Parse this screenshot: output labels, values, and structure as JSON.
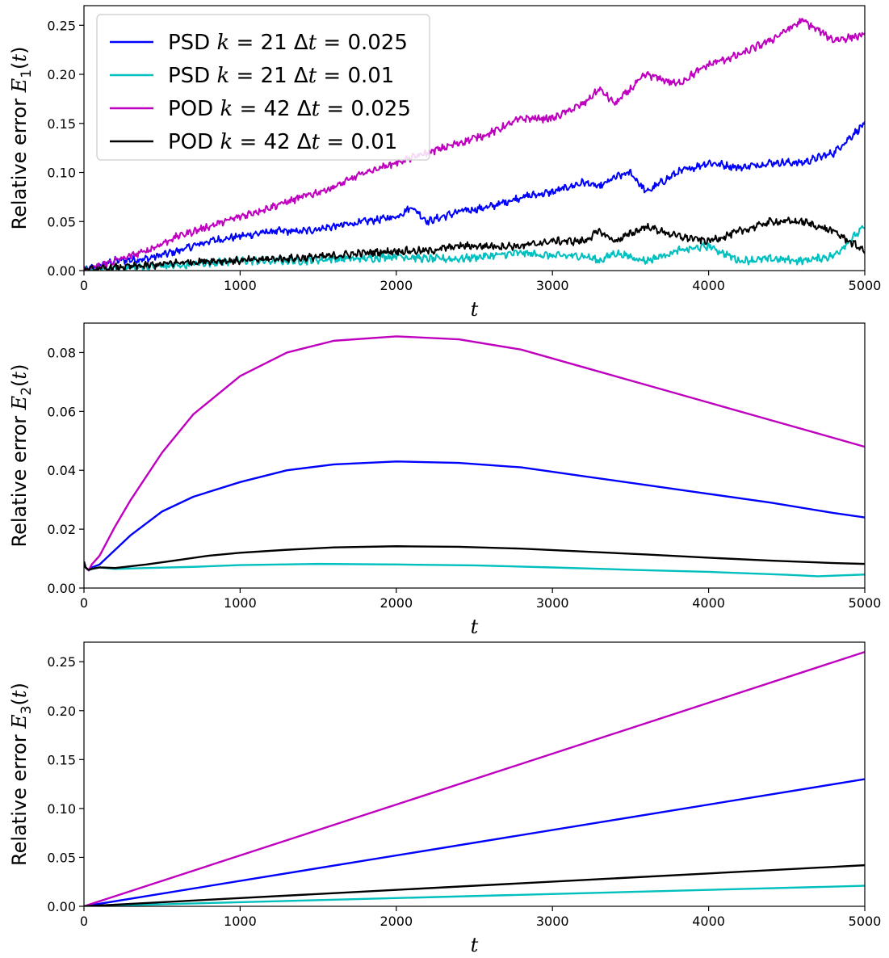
{
  "colors": {
    "psd_k21_dt0025": "#0000ff",
    "psd_k21_dt001": "#00bfbf",
    "pod_k42_dt0025": "#bf00bf",
    "pod_k42_dt001": "#000000",
    "axis": "#000000",
    "background": "#ffffff"
  },
  "legend": {
    "placement": "top-left",
    "panel": 0,
    "entries": [
      {
        "series": "psd_k21_dt0025",
        "method": "PSD",
        "k": "21",
        "dt": "0.025"
      },
      {
        "series": "psd_k21_dt001",
        "method": "PSD",
        "k": "21",
        "dt": "0.01"
      },
      {
        "series": "pod_k42_dt0025",
        "method": "POD",
        "k": "42",
        "dt": "0.025"
      },
      {
        "series": "pod_k42_dt001",
        "method": "POD",
        "k": "42",
        "dt": "0.01"
      }
    ]
  },
  "chart_data": [
    {
      "type": "line",
      "ylabel_prefix": "Relative error",
      "ylabel_sub": "1",
      "xlabel": "t",
      "xlim": [
        0,
        5000
      ],
      "ylim": [
        0,
        0.27
      ],
      "xticks": [
        0,
        1000,
        2000,
        3000,
        4000,
        5000
      ],
      "yticks": [
        0.0,
        0.05,
        0.1,
        0.15,
        0.2,
        0.25
      ],
      "ytick_decimals": 2,
      "grid": false,
      "noisy": true,
      "series": [
        {
          "key": "psd_k21_dt0025",
          "name": "PSD k = 21 Δt = 0.025",
          "x": [
            0,
            100,
            200,
            400,
            600,
            800,
            1000,
            1200,
            1400,
            1600,
            1800,
            2000,
            2100,
            2200,
            2400,
            2600,
            2800,
            3000,
            3200,
            3300,
            3400,
            3500,
            3600,
            3800,
            4000,
            4200,
            4400,
            4600,
            4800,
            5000
          ],
          "values": [
            0,
            0.005,
            0.01,
            0.012,
            0.02,
            0.03,
            0.035,
            0.04,
            0.04,
            0.045,
            0.05,
            0.055,
            0.065,
            0.05,
            0.06,
            0.065,
            0.075,
            0.08,
            0.09,
            0.085,
            0.095,
            0.1,
            0.08,
            0.1,
            0.11,
            0.105,
            0.11,
            0.11,
            0.12,
            0.15
          ]
        },
        {
          "key": "psd_k21_dt001",
          "name": "PSD k = 21 Δt = 0.01",
          "x": [
            0,
            200,
            400,
            600,
            800,
            1000,
            1200,
            1400,
            1600,
            1800,
            2000,
            2200,
            2400,
            2600,
            2800,
            3000,
            3200,
            3300,
            3400,
            3600,
            3800,
            4000,
            4200,
            4400,
            4600,
            4800,
            5000
          ],
          "values": [
            0,
            0.002,
            0.004,
            0.005,
            0.008,
            0.01,
            0.01,
            0.01,
            0.012,
            0.012,
            0.015,
            0.012,
            0.012,
            0.015,
            0.018,
            0.015,
            0.015,
            0.01,
            0.018,
            0.01,
            0.02,
            0.025,
            0.01,
            0.012,
            0.01,
            0.015,
            0.045
          ]
        },
        {
          "key": "pod_k42_dt0025",
          "name": "POD k = 42 Δt = 0.025",
          "x": [
            0,
            200,
            400,
            600,
            800,
            1000,
            1200,
            1400,
            1600,
            1800,
            2000,
            2200,
            2400,
            2600,
            2800,
            3000,
            3200,
            3300,
            3400,
            3600,
            3800,
            4000,
            4200,
            4400,
            4600,
            4800,
            5000
          ],
          "values": [
            0,
            0.01,
            0.02,
            0.035,
            0.045,
            0.055,
            0.065,
            0.075,
            0.085,
            0.1,
            0.11,
            0.12,
            0.13,
            0.14,
            0.155,
            0.155,
            0.17,
            0.185,
            0.17,
            0.2,
            0.19,
            0.21,
            0.22,
            0.235,
            0.255,
            0.235,
            0.24
          ]
        },
        {
          "key": "pod_k42_dt001",
          "name": "POD k = 42 Δt = 0.01",
          "x": [
            0,
            200,
            400,
            600,
            800,
            1000,
            1200,
            1400,
            1600,
            1800,
            2000,
            2200,
            2400,
            2600,
            2800,
            3000,
            3200,
            3300,
            3400,
            3600,
            3800,
            4000,
            4200,
            4400,
            4600,
            4800,
            5000
          ],
          "values": [
            0,
            0.003,
            0.005,
            0.008,
            0.01,
            0.01,
            0.012,
            0.013,
            0.015,
            0.018,
            0.02,
            0.02,
            0.025,
            0.025,
            0.025,
            0.03,
            0.03,
            0.04,
            0.03,
            0.045,
            0.035,
            0.03,
            0.04,
            0.05,
            0.05,
            0.04,
            0.02
          ]
        }
      ]
    },
    {
      "type": "line",
      "ylabel_prefix": "Relative error",
      "ylabel_sub": "2",
      "xlabel": "t",
      "xlim": [
        0,
        5000
      ],
      "ylim": [
        0,
        0.09
      ],
      "xticks": [
        0,
        1000,
        2000,
        3000,
        4000,
        5000
      ],
      "yticks": [
        0.0,
        0.02,
        0.04,
        0.06,
        0.08
      ],
      "ytick_decimals": 2,
      "grid": false,
      "noisy": false,
      "series": [
        {
          "key": "psd_k21_dt0025",
          "name": "PSD k = 21 Δt = 0.025",
          "x": [
            0,
            10,
            30,
            50,
            100,
            200,
            300,
            500,
            700,
            1000,
            1300,
            1600,
            2000,
            2400,
            2800,
            3200,
            3600,
            4000,
            4400,
            4800,
            5000
          ],
          "values": [
            0.009,
            0.007,
            0.006,
            0.007,
            0.008,
            0.013,
            0.018,
            0.026,
            0.031,
            0.036,
            0.04,
            0.042,
            0.043,
            0.0425,
            0.041,
            0.038,
            0.035,
            0.032,
            0.029,
            0.0255,
            0.024
          ]
        },
        {
          "key": "psd_k21_dt001",
          "name": "PSD k = 21 Δt = 0.01",
          "x": [
            0,
            10,
            30,
            50,
            100,
            200,
            400,
            700,
            1000,
            1500,
            2000,
            2500,
            3000,
            3500,
            4000,
            4500,
            4700,
            5000
          ],
          "values": [
            0.009,
            0.007,
            0.006,
            0.0065,
            0.007,
            0.0065,
            0.0068,
            0.0072,
            0.0078,
            0.0082,
            0.008,
            0.0077,
            0.007,
            0.0062,
            0.0055,
            0.0045,
            0.004,
            0.0046
          ]
        },
        {
          "key": "pod_k42_dt0025",
          "name": "POD k = 42 Δt = 0.025",
          "x": [
            0,
            10,
            30,
            50,
            100,
            200,
            300,
            500,
            700,
            1000,
            1300,
            1600,
            2000,
            2400,
            2800,
            3200,
            3600,
            4000,
            4400,
            4800,
            5000
          ],
          "values": [
            0.009,
            0.007,
            0.006,
            0.008,
            0.011,
            0.021,
            0.03,
            0.046,
            0.059,
            0.072,
            0.08,
            0.084,
            0.0855,
            0.0845,
            0.081,
            0.075,
            0.069,
            0.063,
            0.057,
            0.051,
            0.048
          ]
        },
        {
          "key": "pod_k42_dt001",
          "name": "POD k = 42 Δt = 0.01",
          "x": [
            0,
            10,
            30,
            50,
            100,
            200,
            400,
            600,
            800,
            1000,
            1300,
            1600,
            2000,
            2400,
            2800,
            3200,
            3600,
            4000,
            4400,
            4800,
            5000
          ],
          "values": [
            0.009,
            0.007,
            0.0062,
            0.0065,
            0.007,
            0.0068,
            0.008,
            0.0095,
            0.011,
            0.012,
            0.013,
            0.0138,
            0.0142,
            0.014,
            0.0134,
            0.0124,
            0.0114,
            0.0103,
            0.0093,
            0.0085,
            0.0082
          ]
        }
      ]
    },
    {
      "type": "line",
      "ylabel_prefix": "Relative error",
      "ylabel_sub": "3",
      "xlabel": "t",
      "xlim": [
        0,
        5000
      ],
      "ylim": [
        0,
        0.27
      ],
      "xticks": [
        0,
        1000,
        2000,
        3000,
        4000,
        5000
      ],
      "yticks": [
        0.0,
        0.05,
        0.1,
        0.15,
        0.2,
        0.25
      ],
      "ytick_decimals": 2,
      "grid": false,
      "noisy": false,
      "series": [
        {
          "key": "psd_k21_dt0025",
          "name": "PSD k = 21 Δt = 0.025",
          "x": [
            0,
            5000
          ],
          "values": [
            0,
            0.13
          ]
        },
        {
          "key": "psd_k21_dt001",
          "name": "PSD k = 21 Δt = 0.01",
          "x": [
            0,
            5000
          ],
          "values": [
            0,
            0.021
          ]
        },
        {
          "key": "pod_k42_dt0025",
          "name": "POD k = 42 Δt = 0.025",
          "x": [
            0,
            5000
          ],
          "values": [
            0,
            0.26
          ]
        },
        {
          "key": "pod_k42_dt001",
          "name": "POD k = 42 Δt = 0.01",
          "x": [
            0,
            5000
          ],
          "values": [
            0,
            0.042
          ]
        }
      ]
    }
  ]
}
